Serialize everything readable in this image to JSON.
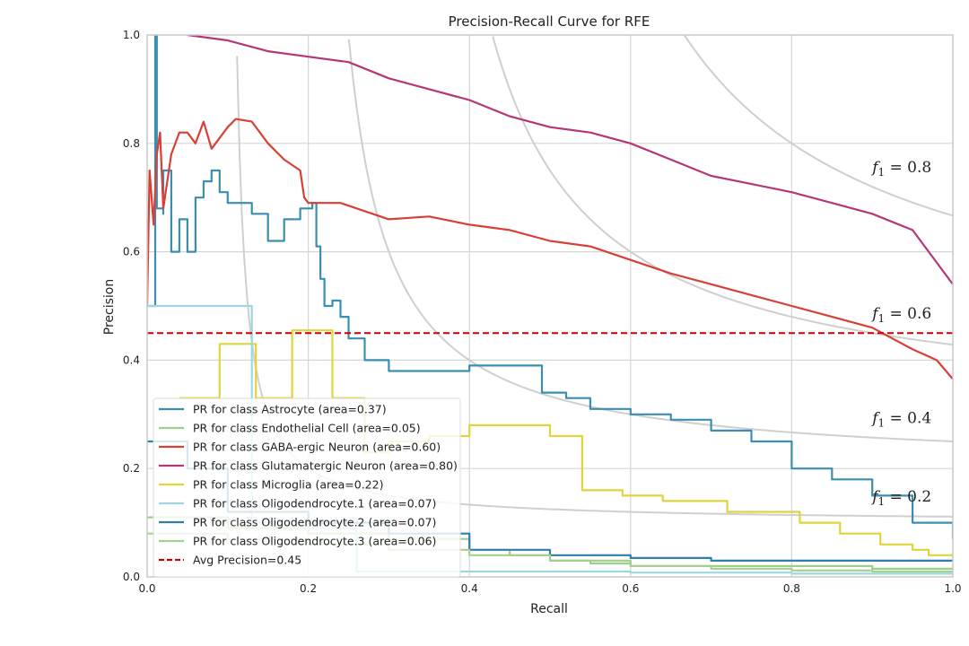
{
  "chart_data": {
    "type": "line",
    "title": "Precision-Recall Curve for RFE",
    "xlabel": "Recall",
    "ylabel": "Precision",
    "xlim": [
      0,
      1
    ],
    "ylim": [
      0,
      1
    ],
    "xticks": [
      "0.0",
      "0.2",
      "0.4",
      "0.6",
      "0.8",
      "1.0"
    ],
    "yticks": [
      "0.0",
      "0.2",
      "0.4",
      "0.6",
      "0.8",
      "1.0"
    ],
    "grid": true,
    "legend_position": "lower-left",
    "iso_f1": [
      {
        "f": 0.2,
        "label_prefix": "f",
        "label_sub": "1",
        "label_suffix": " = 0.2"
      },
      {
        "f": 0.4,
        "label_prefix": "f",
        "label_sub": "1",
        "label_suffix": " = 0.4"
      },
      {
        "f": 0.6,
        "label_prefix": "f",
        "label_sub": "1",
        "label_suffix": " = 0.6"
      },
      {
        "f": 0.8,
        "label_prefix": "f",
        "label_sub": "1",
        "label_suffix": " = 0.8"
      }
    ],
    "avg_precision": {
      "value": 0.45,
      "label": "Avg Precision=0.45",
      "color": "#cc0000"
    },
    "series": [
      {
        "name": "PR for class Astrocyte (area=0.37)",
        "color": "#3a8fb0",
        "step": true,
        "points": [
          [
            0,
            0.5
          ],
          [
            0.01,
            0.5
          ],
          [
            0.01,
            1.0
          ],
          [
            0.012,
            0.68
          ],
          [
            0.02,
            0.67
          ],
          [
            0.02,
            0.75
          ],
          [
            0.03,
            0.75
          ],
          [
            0.03,
            0.6
          ],
          [
            0.04,
            0.66
          ],
          [
            0.05,
            0.6
          ],
          [
            0.06,
            0.7
          ],
          [
            0.07,
            0.73
          ],
          [
            0.08,
            0.75
          ],
          [
            0.09,
            0.71
          ],
          [
            0.1,
            0.69
          ],
          [
            0.12,
            0.69
          ],
          [
            0.13,
            0.67
          ],
          [
            0.15,
            0.62
          ],
          [
            0.17,
            0.66
          ],
          [
            0.19,
            0.68
          ],
          [
            0.205,
            0.69
          ],
          [
            0.21,
            0.61
          ],
          [
            0.215,
            0.55
          ],
          [
            0.22,
            0.5
          ],
          [
            0.23,
            0.51
          ],
          [
            0.24,
            0.48
          ],
          [
            0.25,
            0.44
          ],
          [
            0.27,
            0.4
          ],
          [
            0.3,
            0.38
          ],
          [
            0.35,
            0.38
          ],
          [
            0.4,
            0.39
          ],
          [
            0.45,
            0.39
          ],
          [
            0.48,
            0.39
          ],
          [
            0.49,
            0.34
          ],
          [
            0.52,
            0.33
          ],
          [
            0.55,
            0.31
          ],
          [
            0.6,
            0.3
          ],
          [
            0.65,
            0.29
          ],
          [
            0.7,
            0.27
          ],
          [
            0.75,
            0.25
          ],
          [
            0.8,
            0.2
          ],
          [
            0.85,
            0.18
          ],
          [
            0.9,
            0.15
          ],
          [
            0.95,
            0.1
          ],
          [
            1.0,
            0.07
          ]
        ]
      },
      {
        "name": "PR for class Endothelial Cell (area=0.05)",
        "color": "#9ccf8a",
        "step": true,
        "points": [
          [
            0,
            0.11
          ],
          [
            0.05,
            0.11
          ],
          [
            0.1,
            0.09
          ],
          [
            0.2,
            0.08
          ],
          [
            0.3,
            0.07
          ],
          [
            0.4,
            0.05
          ],
          [
            0.45,
            0.04
          ],
          [
            0.5,
            0.03
          ],
          [
            0.55,
            0.025
          ],
          [
            0.6,
            0.02
          ],
          [
            0.7,
            0.02
          ],
          [
            0.8,
            0.02
          ],
          [
            0.9,
            0.015
          ],
          [
            1.0,
            0.015
          ]
        ]
      },
      {
        "name": "PR for class GABA-ergic Neuron (area=0.60)",
        "color": "#d94035",
        "step": false,
        "points": [
          [
            0,
            0.5
          ],
          [
            0.003,
            0.75
          ],
          [
            0.008,
            0.65
          ],
          [
            0.012,
            0.78
          ],
          [
            0.016,
            0.82
          ],
          [
            0.02,
            0.68
          ],
          [
            0.03,
            0.78
          ],
          [
            0.04,
            0.82
          ],
          [
            0.05,
            0.82
          ],
          [
            0.06,
            0.8
          ],
          [
            0.07,
            0.84
          ],
          [
            0.08,
            0.79
          ],
          [
            0.1,
            0.83
          ],
          [
            0.11,
            0.845
          ],
          [
            0.13,
            0.84
          ],
          [
            0.15,
            0.8
          ],
          [
            0.17,
            0.77
          ],
          [
            0.19,
            0.75
          ],
          [
            0.195,
            0.7
          ],
          [
            0.2,
            0.69
          ],
          [
            0.24,
            0.69
          ],
          [
            0.26,
            0.68
          ],
          [
            0.3,
            0.66
          ],
          [
            0.35,
            0.665
          ],
          [
            0.4,
            0.65
          ],
          [
            0.45,
            0.64
          ],
          [
            0.5,
            0.62
          ],
          [
            0.55,
            0.61
          ],
          [
            0.6,
            0.585
          ],
          [
            0.65,
            0.56
          ],
          [
            0.7,
            0.54
          ],
          [
            0.75,
            0.52
          ],
          [
            0.8,
            0.5
          ],
          [
            0.85,
            0.48
          ],
          [
            0.9,
            0.46
          ],
          [
            0.95,
            0.42
          ],
          [
            0.98,
            0.4
          ],
          [
            1.0,
            0.365
          ]
        ]
      },
      {
        "name": "PR for class Glutamatergic Neuron (area=0.80)",
        "color": "#b5377a",
        "step": false,
        "points": [
          [
            0.05,
            1.0
          ],
          [
            0.1,
            0.99
          ],
          [
            0.15,
            0.97
          ],
          [
            0.2,
            0.96
          ],
          [
            0.25,
            0.95
          ],
          [
            0.3,
            0.92
          ],
          [
            0.35,
            0.9
          ],
          [
            0.4,
            0.88
          ],
          [
            0.45,
            0.85
          ],
          [
            0.5,
            0.83
          ],
          [
            0.55,
            0.82
          ],
          [
            0.6,
            0.8
          ],
          [
            0.65,
            0.77
          ],
          [
            0.7,
            0.74
          ],
          [
            0.75,
            0.725
          ],
          [
            0.8,
            0.71
          ],
          [
            0.85,
            0.69
          ],
          [
            0.9,
            0.67
          ],
          [
            0.95,
            0.64
          ],
          [
            1.0,
            0.54
          ]
        ]
      },
      {
        "name": "PR for class Microglia (area=0.22)",
        "color": "#e0d43c",
        "step": true,
        "points": [
          [
            0.04,
            0.33
          ],
          [
            0.09,
            0.43
          ],
          [
            0.135,
            0.33
          ],
          [
            0.18,
            0.455
          ],
          [
            0.23,
            0.33
          ],
          [
            0.27,
            0.23
          ],
          [
            0.3,
            0.25
          ],
          [
            0.35,
            0.26
          ],
          [
            0.4,
            0.28
          ],
          [
            0.45,
            0.28
          ],
          [
            0.5,
            0.26
          ],
          [
            0.54,
            0.16
          ],
          [
            0.59,
            0.15
          ],
          [
            0.64,
            0.14
          ],
          [
            0.72,
            0.12
          ],
          [
            0.81,
            0.1
          ],
          [
            0.86,
            0.08
          ],
          [
            0.91,
            0.06
          ],
          [
            0.95,
            0.05
          ],
          [
            0.97,
            0.04
          ],
          [
            1.0,
            0.035
          ]
        ]
      },
      {
        "name": "PR for class Oligodendrocyte.1 (area=0.07)",
        "color": "#9dd8e0",
        "step": true,
        "points": [
          [
            0,
            0.5
          ],
          [
            0.12,
            0.5
          ],
          [
            0.13,
            0.1
          ],
          [
            0.2,
            0.09
          ],
          [
            0.26,
            0.01
          ],
          [
            0.4,
            0.01
          ],
          [
            0.6,
            0.008
          ],
          [
            0.8,
            0.006
          ],
          [
            1.0,
            0.005
          ]
        ]
      },
      {
        "name": "PR for class Oligodendrocyte.2 (area=0.07)",
        "color": "#2f7faa",
        "step": true,
        "points": [
          [
            0,
            0.25
          ],
          [
            0.05,
            0.2
          ],
          [
            0.1,
            0.12
          ],
          [
            0.2,
            0.1
          ],
          [
            0.3,
            0.08
          ],
          [
            0.4,
            0.05
          ],
          [
            0.5,
            0.04
          ],
          [
            0.6,
            0.035
          ],
          [
            0.7,
            0.03
          ],
          [
            0.8,
            0.03
          ],
          [
            0.9,
            0.03
          ],
          [
            1.0,
            0.03
          ]
        ]
      },
      {
        "name": "PR for class Oligodendrocyte.3 (area=0.06)",
        "color": "#a6d08f",
        "step": true,
        "points": [
          [
            0,
            0.08
          ],
          [
            0.1,
            0.07
          ],
          [
            0.2,
            0.06
          ],
          [
            0.3,
            0.05
          ],
          [
            0.4,
            0.04
          ],
          [
            0.5,
            0.03
          ],
          [
            0.6,
            0.02
          ],
          [
            0.7,
            0.015
          ],
          [
            0.8,
            0.012
          ],
          [
            0.9,
            0.01
          ],
          [
            1.0,
            0.01
          ]
        ]
      }
    ]
  }
}
